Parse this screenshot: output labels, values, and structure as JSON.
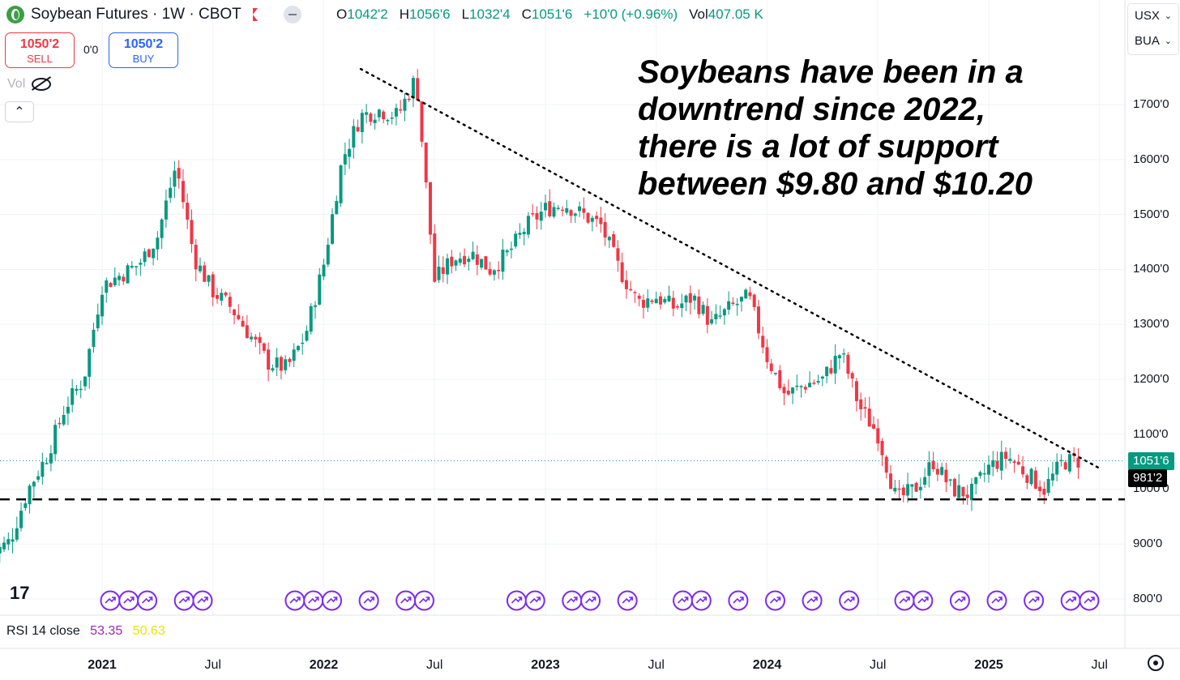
{
  "header": {
    "symbol": "Soybean Futures · 1W · CBOT",
    "ohlc": {
      "o_label": "O",
      "o": "1042'2",
      "h_label": "H",
      "h": "1056'6",
      "l_label": "L",
      "l": "1032'4",
      "c_label": "C",
      "c": "1051'6",
      "change": "+10'0 (+0.96%)",
      "vol_label": "Vol",
      "vol": "407.05 K"
    }
  },
  "trade": {
    "sell_price": "1050'2",
    "sell_label": "SELL",
    "spread": "0'0",
    "buy_price": "1050'2",
    "buy_label": "BUY"
  },
  "vol_indicator": {
    "label": "Vol"
  },
  "right_panel": {
    "currency": "USX",
    "unit": "BUA"
  },
  "annotation": {
    "line1": "Soybeans have been in a",
    "line2": "downtrend since 2022,",
    "line3": "there is a lot of support",
    "line4": "between $9.80 and $10.20"
  },
  "price_labels": {
    "last": "1051'6",
    "support": "981'2"
  },
  "rsi": {
    "label": "RSI 14 close",
    "value1": "53.35",
    "value2": "50.63"
  },
  "colors": {
    "up": "#089981",
    "down": "#f23645",
    "event": "#7b2cf0",
    "grid": "#f0f3fa"
  },
  "icons": {
    "logo": "tradingview-logo",
    "settings": "gear-icon"
  },
  "chart_data": {
    "type": "candlestick",
    "title": "Soybean Futures · 1W · CBOT",
    "ylim": [
      780,
      1860
    ],
    "y_ticks": [
      "800'0",
      "900'0",
      "1000'0",
      "1100'0",
      "1200'0",
      "1300'0",
      "1400'0",
      "1500'0",
      "1600'0",
      "1700'0"
    ],
    "x_ticks": [
      "2021",
      "Jul",
      "2022",
      "Jul",
      "2023",
      "Jul",
      "2024",
      "Jul",
      "2025",
      "Jul"
    ],
    "x_tick_dates": [
      "2021-01",
      "2021-07",
      "2022-01",
      "2022-07",
      "2023-01",
      "2023-07",
      "2024-01",
      "2024-07",
      "2025-01",
      "2025-07"
    ],
    "grid": true,
    "series": [
      {
        "name": "weekly close",
        "points": [
          [
            "2020-07",
            880
          ],
          [
            "2020-08",
            905
          ],
          [
            "2020-09",
            1000
          ],
          [
            "2020-10",
            1060
          ],
          [
            "2020-11",
            1150
          ],
          [
            "2020-12",
            1200
          ],
          [
            "2021-01",
            1370
          ],
          [
            "2021-02",
            1390
          ],
          [
            "2021-03",
            1410
          ],
          [
            "2021-04",
            1460
          ],
          [
            "2021-05",
            1590
          ],
          [
            "2021-06",
            1420
          ],
          [
            "2021-07",
            1360
          ],
          [
            "2021-08",
            1330
          ],
          [
            "2021-09",
            1280
          ],
          [
            "2021-10",
            1230
          ],
          [
            "2021-11",
            1220
          ],
          [
            "2021-12",
            1280
          ],
          [
            "2022-01",
            1410
          ],
          [
            "2022-02",
            1600
          ],
          [
            "2022-03",
            1680
          ],
          [
            "2022-04",
            1690
          ],
          [
            "2022-05",
            1680
          ],
          [
            "2022-06",
            1750
          ],
          [
            "2022-07",
            1380
          ],
          [
            "2022-08",
            1420
          ],
          [
            "2022-09",
            1430
          ],
          [
            "2022-10",
            1400
          ],
          [
            "2022-11",
            1430
          ],
          [
            "2022-12",
            1480
          ],
          [
            "2023-01",
            1510
          ],
          [
            "2023-02",
            1520
          ],
          [
            "2023-03",
            1500
          ],
          [
            "2023-04",
            1480
          ],
          [
            "2023-05",
            1400
          ],
          [
            "2023-06",
            1340
          ],
          [
            "2023-07",
            1350
          ],
          [
            "2023-08",
            1330
          ],
          [
            "2023-09",
            1350
          ],
          [
            "2023-10",
            1300
          ],
          [
            "2023-11",
            1330
          ],
          [
            "2023-12",
            1350
          ],
          [
            "2024-01",
            1240
          ],
          [
            "2024-02",
            1170
          ],
          [
            "2024-03",
            1190
          ],
          [
            "2024-04",
            1200
          ],
          [
            "2024-05",
            1250
          ],
          [
            "2024-06",
            1150
          ],
          [
            "2024-07",
            1100
          ],
          [
            "2024-08",
            980
          ],
          [
            "2024-09",
            1000
          ],
          [
            "2024-10",
            1050
          ],
          [
            "2024-11",
            1000
          ],
          [
            "2024-12",
            990
          ],
          [
            "2025-01",
            1040
          ],
          [
            "2025-02",
            1060
          ],
          [
            "2025-03",
            1030
          ],
          [
            "2025-04",
            1000
          ],
          [
            "2025-05",
            1050
          ],
          [
            "2025-06",
            1052
          ]
        ]
      }
    ],
    "trendline": {
      "style": "dotted",
      "from": [
        "2022-03",
        1765
      ],
      "to": [
        "2025-07",
        1038
      ]
    },
    "support_line": {
      "style": "dashed",
      "value": 981.25,
      "label": "981'2"
    },
    "last_price_line": {
      "style": "dotted",
      "value": 1051.75,
      "label": "1051'6"
    },
    "event_markers": [
      "2021-01",
      "2021-02",
      "2021-03",
      "2021-05",
      "2021-06",
      "2021-11",
      "2021-12",
      "2022-01",
      "2022-03",
      "2022-05",
      "2022-06",
      "2022-11",
      "2022-12",
      "2023-02",
      "2023-03",
      "2023-05",
      "2023-08",
      "2023-09",
      "2023-11",
      "2024-01",
      "2024-03",
      "2024-05",
      "2024-08",
      "2024-09",
      "2024-11",
      "2025-01",
      "2025-03",
      "2025-05",
      "2025-06"
    ]
  }
}
